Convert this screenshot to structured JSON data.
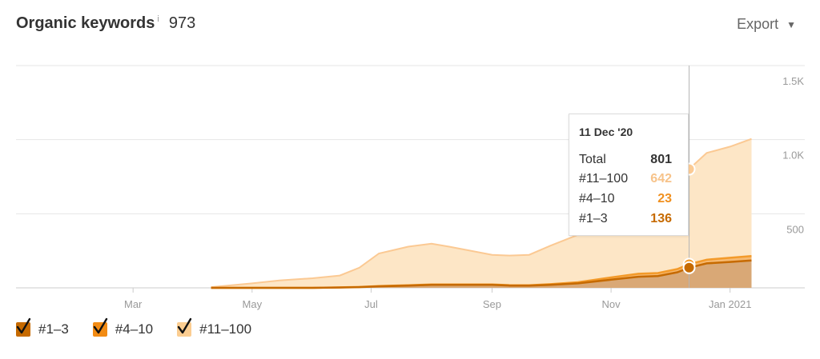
{
  "header": {
    "title": "Organic keywords",
    "info": "i",
    "count": "973",
    "export_label": "Export"
  },
  "colors": {
    "top3": "#c66a00",
    "top4_10": "#f39a2a",
    "top11_100": "#fdd9ac",
    "top11_100_line": "#f7c38a",
    "total_line": "#fbc993",
    "grid": "#e6e6e6"
  },
  "tooltip": {
    "date": "11 Dec '20",
    "rows": [
      {
        "label": "Total",
        "value": "801",
        "color": "#333333"
      },
      {
        "label": "#11–100",
        "value": "642",
        "color": "#f7c38a"
      },
      {
        "label": "#4–10",
        "value": "23",
        "color": "#f0901f"
      },
      {
        "label": "#1–3",
        "value": "136",
        "color": "#c66a00"
      }
    ]
  },
  "legend": [
    {
      "label": "#1–3",
      "color": "#c66a00"
    },
    {
      "label": "#4–10",
      "color": "#f28b13"
    },
    {
      "label": "#11–100",
      "color": "#fbcd91"
    }
  ],
  "chart_data": {
    "type": "area",
    "stacked": true,
    "x_tick_labels": [
      "Mar",
      "May",
      "Jul",
      "Sep",
      "Nov",
      "Jan 2021"
    ],
    "x_tick_dates": [
      "2020-03-01",
      "2020-05-01",
      "2020-07-01",
      "2020-09-01",
      "2020-11-01",
      "2021-01-01"
    ],
    "xlim": [
      "2020-01-01",
      "2021-01-20"
    ],
    "y_tick_labels": [
      "500",
      "1.0K",
      "1.5K"
    ],
    "y_ticks": [
      500,
      1000,
      1500
    ],
    "ylim": [
      0,
      1500
    ],
    "grid": true,
    "legend_position": "bottom-left",
    "highlight_date": "2020-12-11",
    "x": [
      "2020-04-10",
      "2020-05-01",
      "2020-05-15",
      "2020-06-01",
      "2020-06-15",
      "2020-06-25",
      "2020-07-05",
      "2020-07-20",
      "2020-08-01",
      "2020-08-10",
      "2020-08-20",
      "2020-09-01",
      "2020-09-10",
      "2020-09-20",
      "2020-10-01",
      "2020-10-15",
      "2020-11-01",
      "2020-11-15",
      "2020-11-25",
      "2020-12-05",
      "2020-12-11",
      "2020-12-20",
      "2021-01-01",
      "2021-01-12"
    ],
    "series": [
      {
        "name": "#1–3",
        "values": [
          0,
          0,
          0,
          0,
          2,
          5,
          10,
          15,
          20,
          20,
          20,
          20,
          15,
          15,
          20,
          30,
          55,
          75,
          80,
          105,
          136,
          165,
          175,
          185
        ]
      },
      {
        "name": "#4–10",
        "values": [
          0,
          0,
          0,
          0,
          1,
          1,
          2,
          3,
          3,
          3,
          3,
          3,
          3,
          3,
          5,
          8,
          15,
          20,
          20,
          22,
          23,
          25,
          28,
          30
        ]
      },
      {
        "name": "#11–100",
        "values": [
          5,
          30,
          50,
          65,
          80,
          130,
          220,
          260,
          275,
          255,
          230,
          200,
          200,
          205,
          260,
          320,
          380,
          400,
          500,
          620,
          642,
          720,
          750,
          790
        ]
      }
    ]
  }
}
